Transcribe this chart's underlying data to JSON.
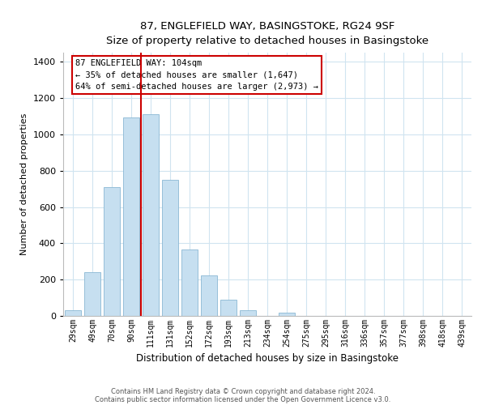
{
  "title": "87, ENGLEFIELD WAY, BASINGSTOKE, RG24 9SF",
  "subtitle": "Size of property relative to detached houses in Basingstoke",
  "xlabel": "Distribution of detached houses by size in Basingstoke",
  "ylabel": "Number of detached properties",
  "bar_labels": [
    "29sqm",
    "49sqm",
    "70sqm",
    "90sqm",
    "111sqm",
    "131sqm",
    "152sqm",
    "172sqm",
    "193sqm",
    "213sqm",
    "234sqm",
    "254sqm",
    "275sqm",
    "295sqm",
    "316sqm",
    "336sqm",
    "357sqm",
    "377sqm",
    "398sqm",
    "418sqm",
    "439sqm"
  ],
  "bar_values": [
    30,
    240,
    710,
    1095,
    1110,
    750,
    365,
    225,
    90,
    30,
    0,
    20,
    0,
    0,
    0,
    0,
    0,
    0,
    0,
    0,
    0
  ],
  "bar_color": "#c6dff0",
  "bar_edge_color": "#8ab8d4",
  "marker_color": "#cc0000",
  "ylim": [
    0,
    1450
  ],
  "yticks": [
    0,
    200,
    400,
    600,
    800,
    1000,
    1200,
    1400
  ],
  "annotation_line1": "87 ENGLEFIELD WAY: 104sqm",
  "annotation_line2": "← 35% of detached houses are smaller (1,647)",
  "annotation_line3": "64% of semi-detached houses are larger (2,973) →",
  "footnote1": "Contains HM Land Registry data © Crown copyright and database right 2024.",
  "footnote2": "Contains public sector information licensed under the Open Government Licence v3.0.",
  "grid_color": "#d0e4f0"
}
